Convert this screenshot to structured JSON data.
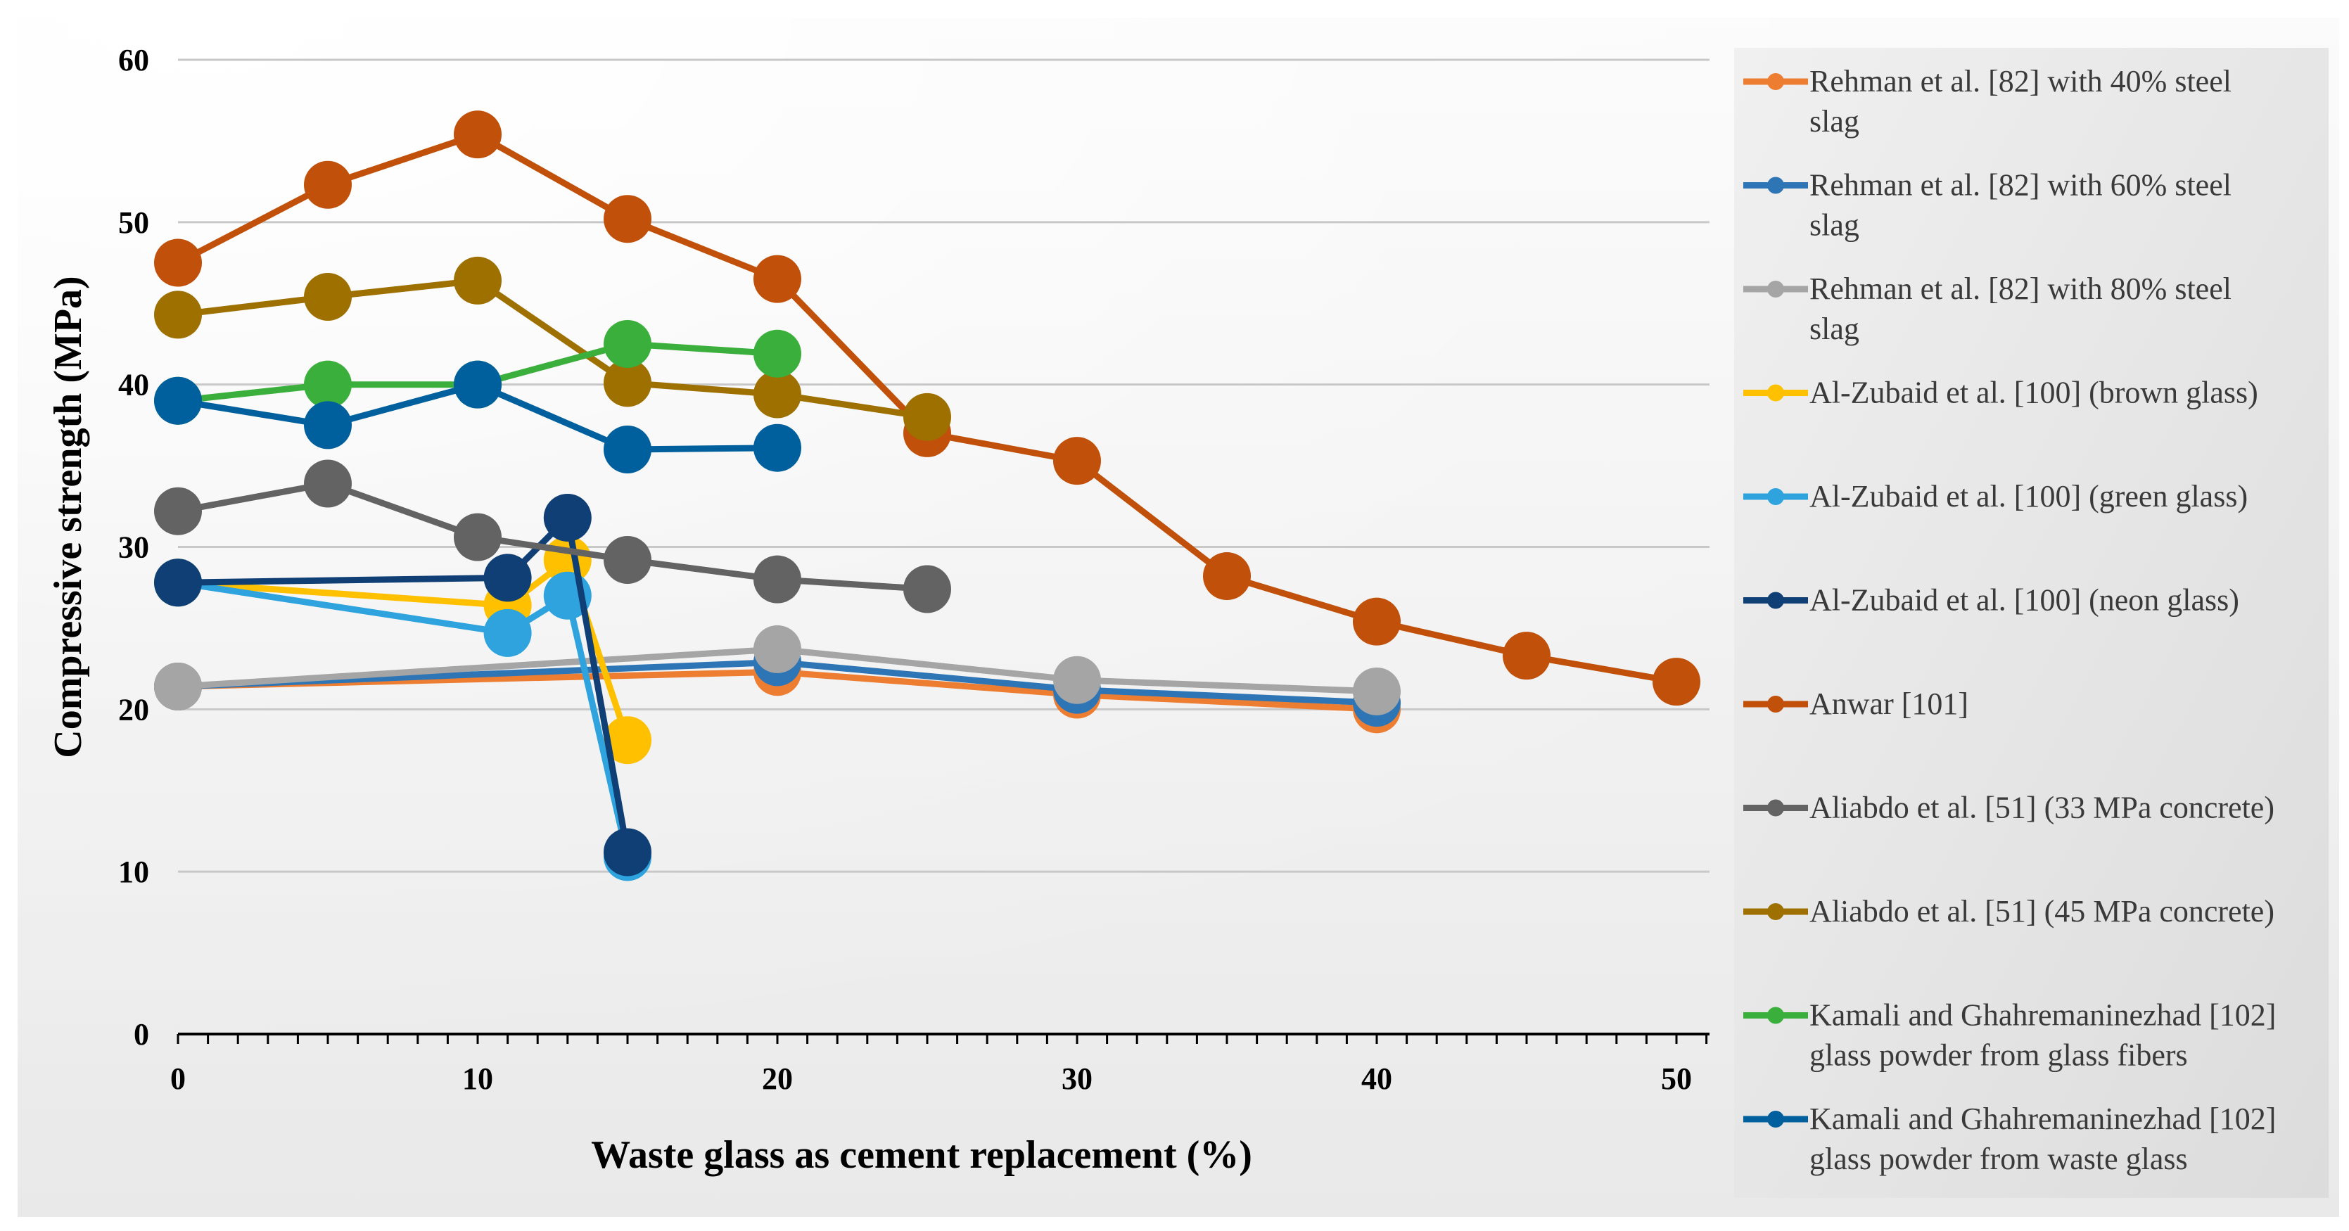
{
  "chart_data": {
    "type": "line",
    "title": "",
    "xlabel": "Waste glass as cement replacement (%)",
    "ylabel": "Compressive strength (MPa)",
    "xlim": [
      0,
      51
    ],
    "ylim": [
      0,
      60
    ],
    "xticks": [
      0,
      10,
      20,
      30,
      40,
      50
    ],
    "yticks": [
      0,
      10,
      20,
      30,
      40,
      50,
      60
    ],
    "grid": true,
    "legend_position": "right",
    "series": [
      {
        "name": "Rehman et al. [82] with 40% steel slag",
        "color": "#ED7D31",
        "x": [
          0,
          20,
          30,
          40
        ],
        "y": [
          21.4,
          22.3,
          20.9,
          20.0
        ]
      },
      {
        "name": "Rehman et al. [82] with 60% steel slag",
        "color": "#2E75B6",
        "x": [
          0,
          20,
          30,
          40
        ],
        "y": [
          21.4,
          22.9,
          21.2,
          20.4
        ]
      },
      {
        "name": "Rehman et al. [82] with 80% steel slag",
        "color": "#A5A5A5",
        "x": [
          0,
          20,
          30,
          40
        ],
        "y": [
          21.4,
          23.7,
          21.8,
          21.1
        ]
      },
      {
        "name": "Al-Zubaid et al. [100] (brown glass)",
        "color": "#FFC000",
        "x": [
          0,
          11,
          13,
          15
        ],
        "y": [
          27.8,
          26.4,
          29.2,
          18.1
        ]
      },
      {
        "name": "Al-Zubaid et al. [100] (green glass)",
        "color": "#2EA3DD",
        "x": [
          0,
          11,
          13,
          15
        ],
        "y": [
          27.8,
          24.7,
          27.0,
          10.9
        ]
      },
      {
        "name": "Al-Zubaid et al. [100] (neon glass)",
        "color": "#0F3F75",
        "x": [
          0,
          11,
          13,
          15
        ],
        "y": [
          27.8,
          28.1,
          31.8,
          11.2
        ]
      },
      {
        "name": "Anwar [101]",
        "color": "#C0500A",
        "x": [
          0,
          5,
          10,
          15,
          20,
          25,
          30,
          35,
          40,
          45,
          50
        ],
        "y": [
          47.5,
          52.3,
          55.4,
          50.2,
          46.5,
          37.0,
          35.3,
          28.2,
          25.4,
          23.3,
          21.7
        ]
      },
      {
        "name": "Aliabdo et al. [51] (33 MPa concrete)",
        "color": "#636363",
        "x": [
          0,
          5,
          10,
          15,
          20,
          25
        ],
        "y": [
          32.2,
          33.9,
          30.6,
          29.2,
          28.0,
          27.4
        ]
      },
      {
        "name": "Aliabdo et al. [51] (45 MPa concrete)",
        "color": "#9E7000",
        "x": [
          0,
          5,
          10,
          15,
          20,
          25
        ],
        "y": [
          44.3,
          45.4,
          46.4,
          40.1,
          39.4,
          38.0
        ]
      },
      {
        "name": "Kamali and Ghahremaninezhad [102] glass powder from glass fibers",
        "color": "#3BAF3B",
        "x": [
          0,
          5,
          10,
          15,
          20
        ],
        "y": [
          39.0,
          40.0,
          40.0,
          42.5,
          41.9
        ]
      },
      {
        "name": "Kamali and Ghahremaninezhad [102] glass powder from waste glass",
        "color": "#00609D",
        "x": [
          0,
          5,
          10,
          15,
          20
        ],
        "y": [
          39.0,
          37.5,
          40.0,
          36.0,
          36.1
        ]
      }
    ],
    "legend": {
      "entries": [
        {
          "lines": [
            "Rehman et al. [82] with 40% steel",
            "slag"
          ]
        },
        {
          "lines": [
            "Rehman et al. [82] with 60% steel",
            "slag"
          ]
        },
        {
          "lines": [
            "Rehman et al. [82] with 80% steel",
            "slag"
          ]
        },
        {
          "lines": [
            "Al-Zubaid et al. [100] (brown glass)"
          ]
        },
        {
          "lines": [
            "Al-Zubaid et al. [100] (green glass)"
          ]
        },
        {
          "lines": [
            "Al-Zubaid et al. [100] (neon glass)"
          ]
        },
        {
          "lines": [
            "Anwar [101]"
          ]
        },
        {
          "lines": [
            "Aliabdo et al. [51] (33 MPa concrete)"
          ]
        },
        {
          "lines": [
            "Aliabdo et al. [51] (45 MPa concrete)"
          ]
        },
        {
          "lines": [
            "Kamali and Ghahremaninezhad [102]",
            "glass powder from glass fibers"
          ]
        },
        {
          "lines": [
            "Kamali and Ghahremaninezhad [102]",
            "glass powder from waste glass"
          ]
        }
      ]
    }
  }
}
